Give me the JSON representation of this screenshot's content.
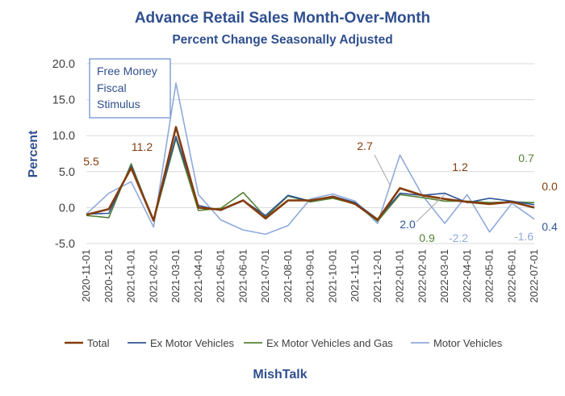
{
  "chart_data": {
    "type": "line",
    "title": "Advance Retail Sales Month-Over-Month",
    "subtitle": "Percent Change Seasonally Adjusted",
    "ylabel": "Percent",
    "xlabel": "",
    "ylim": [
      -5,
      20
    ],
    "yticks": [
      "20.0",
      "15.0",
      "10.0",
      "5.0",
      "0.0",
      "-5.0"
    ],
    "grid": "horizontal",
    "legend_position": "bottom",
    "x": [
      "2020-11-01",
      "2020-12-01",
      "2021-01-01",
      "2021-02-01",
      "2021-03-01",
      "2021-04-01",
      "2021-05-01",
      "2021-06-01",
      "2021-07-01",
      "2021-08-01",
      "2021-09-01",
      "2021-10-01",
      "2021-11-01",
      "2021-12-01",
      "2022-01-01",
      "2022-02-01",
      "2022-03-01",
      "2022-04-01",
      "2022-05-01",
      "2022-06-01",
      "2022-07-01"
    ],
    "series": [
      {
        "name": "Total",
        "color": "#843c0c",
        "values": [
          -1.0,
          -0.2,
          5.5,
          -1.8,
          11.2,
          0.0,
          -0.3,
          1.0,
          -1.5,
          1.0,
          1.0,
          1.5,
          0.5,
          -1.7,
          2.7,
          1.7,
          1.2,
          0.8,
          0.5,
          0.8,
          0.0
        ]
      },
      {
        "name": "Ex Motor Vehicles",
        "color": "#2f5597",
        "values": [
          -0.9,
          -0.8,
          5.8,
          -1.7,
          9.9,
          0.3,
          -0.4,
          1.0,
          -1.1,
          1.7,
          0.9,
          1.6,
          0.7,
          -1.6,
          2.0,
          1.7,
          2.0,
          0.7,
          1.3,
          0.9,
          0.4
        ]
      },
      {
        "name": "Ex Motor Vehicles and Gas",
        "color": "#548235",
        "values": [
          -1.1,
          -1.4,
          6.1,
          -1.9,
          9.6,
          -0.4,
          -0.1,
          2.1,
          -1.3,
          1.6,
          0.8,
          1.3,
          0.5,
          -1.9,
          1.8,
          1.4,
          0.9,
          0.9,
          0.7,
          0.8,
          0.7
        ]
      },
      {
        "name": "Motor Vehicles",
        "color": "#8faadc",
        "values": [
          -0.9,
          2.0,
          3.6,
          -2.7,
          17.3,
          1.8,
          -1.7,
          -3.1,
          -3.7,
          -2.5,
          1.2,
          1.9,
          0.9,
          -2.2,
          7.3,
          1.7,
          -2.2,
          1.8,
          -3.4,
          0.6,
          -1.6
        ]
      }
    ],
    "annotations": [
      {
        "text": "5.5",
        "series": "Total",
        "color": "#843c0c"
      },
      {
        "text": "11.2",
        "series": "Total",
        "color": "#843c0c"
      },
      {
        "text": "2.7",
        "series": "Total",
        "color": "#843c0c"
      },
      {
        "text": "1.2",
        "series": "Total",
        "color": "#843c0c"
      },
      {
        "text": "0.0",
        "series": "Total",
        "color": "#843c0c"
      },
      {
        "text": "0.7",
        "series": "Ex Motor Vehicles and Gas",
        "color": "#548235"
      },
      {
        "text": "0.9",
        "series": "Ex Motor Vehicles and Gas",
        "color": "#548235"
      },
      {
        "text": "2.0",
        "series": "Ex Motor Vehicles",
        "color": "#2f5597"
      },
      {
        "text": "0.4",
        "series": "Ex Motor Vehicles",
        "color": "#2f5597"
      },
      {
        "text": "-2.2",
        "series": "Motor Vehicles",
        "color": "#8faadc"
      },
      {
        "text": "-1.6",
        "series": "Motor Vehicles",
        "color": "#8faadc"
      }
    ],
    "note_box": [
      "Free Money",
      "Fiscal",
      "Stimulus"
    ],
    "source": "MishTalk"
  }
}
